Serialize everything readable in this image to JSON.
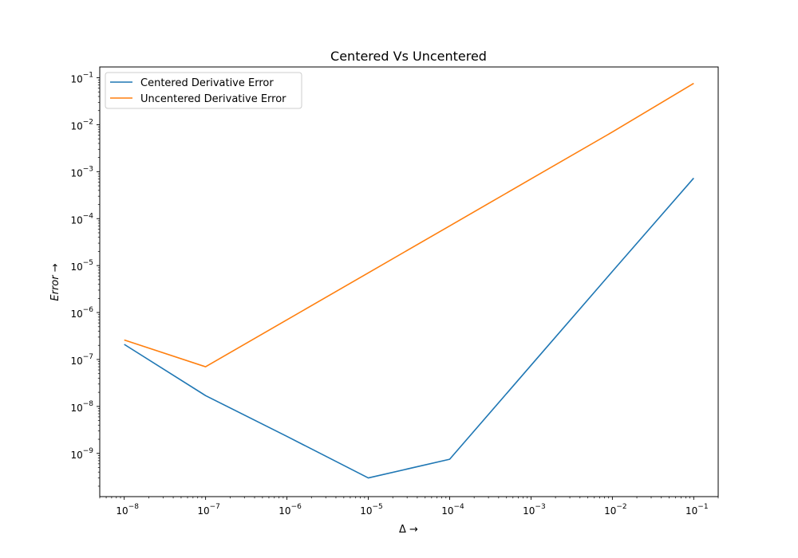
{
  "chart_data": {
    "type": "line",
    "title": "Centered Vs Uncentered",
    "xlabel": "Δ →",
    "ylabel": "Error →",
    "x_scale": "log",
    "y_scale": "log",
    "xlim": [
      5e-09,
      0.2
    ],
    "ylim": [
      1.2e-10,
      0.17
    ],
    "x_ticks": [
      {
        "value": 1e-08,
        "base": "10",
        "exp": "−8"
      },
      {
        "value": 1e-07,
        "base": "10",
        "exp": "−7"
      },
      {
        "value": 1e-06,
        "base": "10",
        "exp": "−6"
      },
      {
        "value": 1e-05,
        "base": "10",
        "exp": "−5"
      },
      {
        "value": 0.0001,
        "base": "10",
        "exp": "−4"
      },
      {
        "value": 0.001,
        "base": "10",
        "exp": "−3"
      },
      {
        "value": 0.01,
        "base": "10",
        "exp": "−2"
      },
      {
        "value": 0.1,
        "base": "10",
        "exp": "−1"
      }
    ],
    "y_ticks": [
      {
        "value": 1e-09,
        "base": "10",
        "exp": "−9"
      },
      {
        "value": 1e-08,
        "base": "10",
        "exp": "−8"
      },
      {
        "value": 1e-07,
        "base": "10",
        "exp": "−7"
      },
      {
        "value": 1e-06,
        "base": "10",
        "exp": "−6"
      },
      {
        "value": 1e-05,
        "base": "10",
        "exp": "−5"
      },
      {
        "value": 0.0001,
        "base": "10",
        "exp": "−4"
      },
      {
        "value": 0.001,
        "base": "10",
        "exp": "−3"
      },
      {
        "value": 0.01,
        "base": "10",
        "exp": "−2"
      },
      {
        "value": 0.1,
        "base": "10",
        "exp": "−1"
      }
    ],
    "x": [
      1e-08,
      1e-07,
      1e-06,
      1e-05,
      0.0001,
      0.001,
      0.01,
      0.1
    ],
    "series": [
      {
        "name": "Centered Derivative Error",
        "color": "#1f77b4",
        "values": [
          2.1e-07,
          1.7e-08,
          2.3e-09,
          3e-10,
          7.5e-10,
          7.5e-08,
          7.5e-06,
          0.00073
        ]
      },
      {
        "name": "Uncentered Derivative Error",
        "color": "#ff7f0e",
        "values": [
          2.6e-07,
          7e-08,
          7e-07,
          7e-06,
          7e-05,
          0.0007,
          0.007,
          0.076
        ]
      }
    ],
    "grid": false,
    "legend_position": "upper-left"
  }
}
